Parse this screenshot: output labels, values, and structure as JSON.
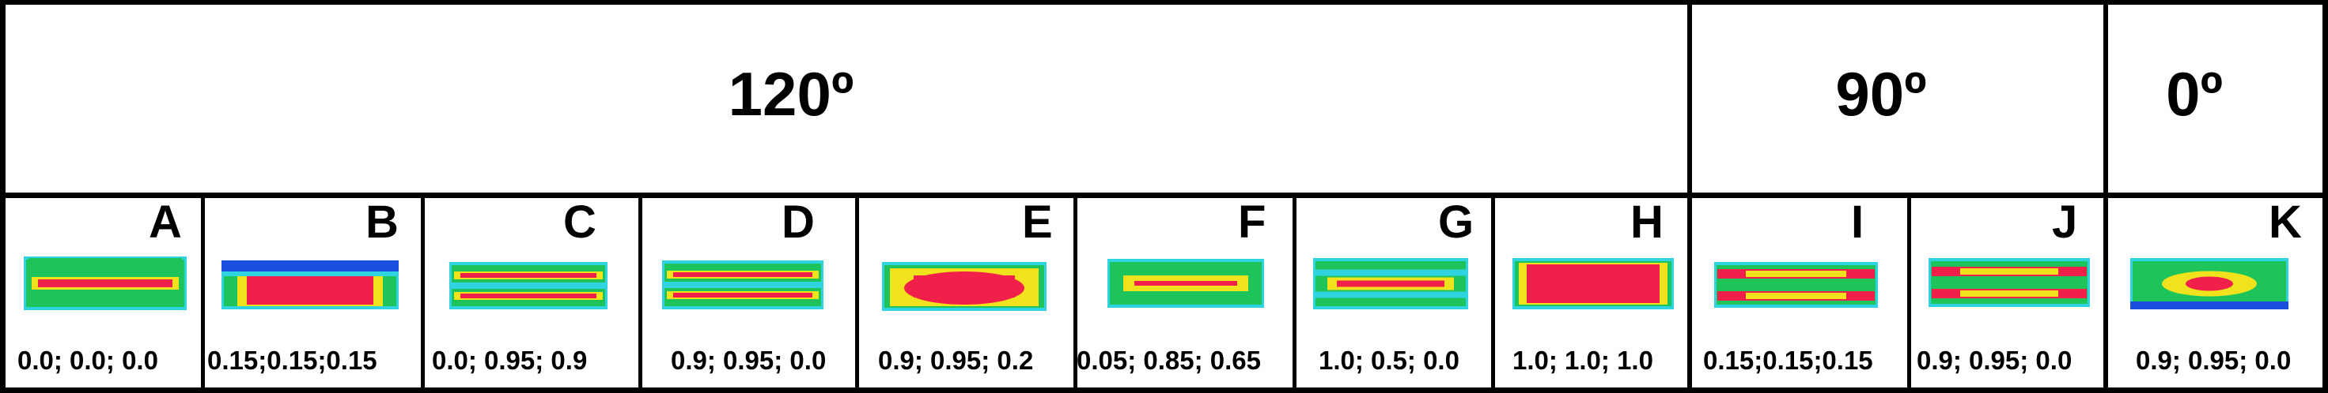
{
  "headers": [
    {
      "label": "120º"
    },
    {
      "label": "90º"
    },
    {
      "label": "0º"
    }
  ],
  "panels": [
    {
      "letter": "A",
      "values": "0.0; 0.0; 0.0",
      "pattern": "red-core-thin"
    },
    {
      "letter": "B",
      "values": "0.15;0.15;0.15",
      "pattern": "red-dome-blue-top"
    },
    {
      "letter": "C",
      "values": "0.0; 0.95; 0.9",
      "pattern": "double-red-lines"
    },
    {
      "letter": "D",
      "values": "0.9; 0.95; 0.0",
      "pattern": "double-red-lines"
    },
    {
      "letter": "E",
      "values": "0.9; 0.95; 0.2",
      "pattern": "red-dome"
    },
    {
      "letter": "F",
      "values": "0.05; 0.85; 0.65",
      "pattern": "yellow-center-line"
    },
    {
      "letter": "G",
      "values": "1.0; 0.5; 0.0",
      "pattern": "single-red-line"
    },
    {
      "letter": "H",
      "values": "1.0; 1.0; 1.0",
      "pattern": "red-block"
    },
    {
      "letter": "I",
      "values": "0.15;0.15;0.15",
      "pattern": "double-red-yellow"
    },
    {
      "letter": "J",
      "values": "0.9; 0.95; 0.0",
      "pattern": "double-red-yellow"
    },
    {
      "letter": "K",
      "values": "0.9; 0.95; 0.0",
      "pattern": "red-spot"
    }
  ],
  "colors": {
    "background": "#00c890",
    "green": "#1ec45a",
    "cyan": "#2fd4e0",
    "blue": "#1a4fe0",
    "yellow": "#f0e21c",
    "red": "#f0204a",
    "border": "#000000"
  }
}
